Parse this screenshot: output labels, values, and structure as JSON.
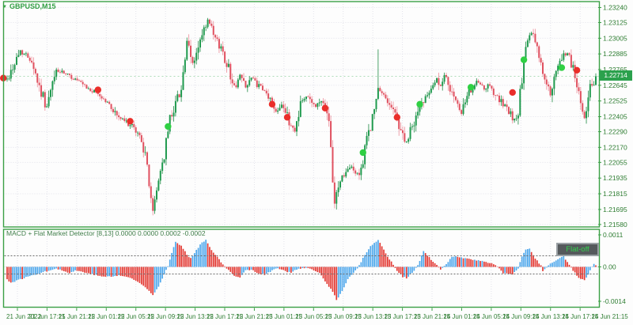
{
  "window_title": "GBPUSD,M15",
  "symbol": {
    "dropdown_icon": "▼",
    "label": "GBPUSD,M15"
  },
  "indicator": {
    "name": "MACD + Flat Market Detector",
    "params": "[8,13]",
    "values": [
      "0.0000",
      "0.0000",
      "0.0002",
      "-0.0002"
    ],
    "label": "MACD + Flat Market Detector [8,13] 0.0000 0.0000 0.0002 -0.0002",
    "flat_button_label": "Flat-off"
  },
  "price_axis": {
    "current_price": "1.22714",
    "ticks": [
      "1.23240",
      "1.23125",
      "1.23005",
      "1.22885",
      "1.22765",
      "1.22645",
      "1.22525",
      "1.22405",
      "1.22290",
      "1.22170",
      "1.22055",
      "1.21935",
      "1.21815",
      "1.21695",
      "1.21580"
    ]
  },
  "indicator_axis": {
    "ticks": [
      "0.0011",
      "0.00",
      "-0.0014"
    ]
  },
  "time_axis": {
    "labels": [
      "21 Jun 2022",
      "21 Jun 17:15",
      "21 Jun 21:15",
      "22 Jun 01:15",
      "22 Jun 05:15",
      "22 Jun 09:15",
      "22 Jun 13:15",
      "22 Jun 17:15",
      "22 Jun 21:15",
      "23 Jun 01:15",
      "23 Jun 05:15",
      "23 Jun 09:15",
      "23 Jun 13:15",
      "23 Jun 17:15",
      "23 Jun 21:15",
      "24 Jun 01:15",
      "24 Jun 05:15",
      "24 Jun 09:15",
      "24 Jun 13:15",
      "24 Jun 17:15",
      "24 Jun 21:15"
    ]
  },
  "colors": {
    "frame": "#3aa045",
    "axis_text": "#2e7d32",
    "grid": "#e2e2ea",
    "bull": "#1f9a4e",
    "bear": "#e0505f",
    "wick_bull": "#1f8a44",
    "wick_bear": "#ec8d99",
    "dot_buy": "#2fd043",
    "dot_sell": "#ea2e2a",
    "macd_up": "#4fa8ec",
    "macd_down": "#e33b35",
    "threshold_line": "#6a6a6a",
    "zero_line": "#b8b8c0",
    "tag_bg": "#2ba14d",
    "tag_text": "#ffffff"
  },
  "chart_data": [
    {
      "type": "candlestick",
      "title": "GBPUSD,M15",
      "bars": 312,
      "price_range": [
        1.2158,
        1.2324
      ],
      "current_price": 1.22714,
      "close_anchors": [
        [
          0,
          1.2269
        ],
        [
          7,
          1.2291
        ],
        [
          13,
          1.2284
        ],
        [
          17,
          1.2263
        ],
        [
          21,
          1.2248
        ],
        [
          26,
          1.2276
        ],
        [
          32,
          1.2272
        ],
        [
          36,
          1.2269
        ],
        [
          42,
          1.2262
        ],
        [
          48,
          1.2258
        ],
        [
          53,
          1.2251
        ],
        [
          59,
          1.224
        ],
        [
          65,
          1.2234
        ],
        [
          71,
          1.2224
        ],
        [
          74,
          1.2202
        ],
        [
          77,
          1.2167
        ],
        [
          80,
          1.2193
        ],
        [
          83,
          1.2211
        ],
        [
          86,
          1.2239
        ],
        [
          89,
          1.2251
        ],
        [
          92,
          1.2263
        ],
        [
          95,
          1.2296
        ],
        [
          98,
          1.2281
        ],
        [
          101,
          1.2293
        ],
        [
          106,
          1.2314
        ],
        [
          109,
          1.2302
        ],
        [
          113,
          1.2293
        ],
        [
          117,
          1.2278
        ],
        [
          120,
          1.2263
        ],
        [
          123,
          1.2272
        ],
        [
          126,
          1.2264
        ],
        [
          129,
          1.227
        ],
        [
          134,
          1.2262
        ],
        [
          138,
          1.2256
        ],
        [
          142,
          1.2245
        ],
        [
          145,
          1.2251
        ],
        [
          149,
          1.2236
        ],
        [
          152,
          1.223
        ],
        [
          155,
          1.2251
        ],
        [
          159,
          1.2257
        ],
        [
          163,
          1.2248
        ],
        [
          167,
          1.2254
        ],
        [
          170,
          1.2233
        ],
        [
          173,
          1.2174
        ],
        [
          176,
          1.2193
        ],
        [
          182,
          1.2202
        ],
        [
          185,
          1.2196
        ],
        [
          188,
          1.2205
        ],
        [
          190,
          1.2224
        ],
        [
          193,
          1.2239
        ],
        [
          196,
          1.226
        ],
        [
          199,
          1.2257
        ],
        [
          202,
          1.2251
        ],
        [
          205,
          1.2242
        ],
        [
          208,
          1.223
        ],
        [
          211,
          1.222
        ],
        [
          214,
          1.2233
        ],
        [
          218,
          1.2247
        ],
        [
          221,
          1.2257
        ],
        [
          224,
          1.2264
        ],
        [
          227,
          1.2269
        ],
        [
          229,
          1.2263
        ],
        [
          232,
          1.2272
        ],
        [
          237,
          1.225
        ],
        [
          240,
          1.2243
        ],
        [
          245,
          1.2262
        ],
        [
          249,
          1.2267
        ],
        [
          252,
          1.226
        ],
        [
          255,
          1.2265
        ],
        [
          259,
          1.2255
        ],
        [
          263,
          1.2248
        ],
        [
          268,
          1.2238
        ],
        [
          270,
          1.2245
        ],
        [
          272,
          1.227
        ],
        [
          275,
          1.23
        ],
        [
          277,
          1.2304
        ],
        [
          280,
          1.2295
        ],
        [
          284,
          1.2267
        ],
        [
          287,
          1.2258
        ],
        [
          290,
          1.2272
        ],
        [
          293,
          1.2285
        ],
        [
          296,
          1.229
        ],
        [
          299,
          1.2278
        ],
        [
          302,
          1.2258
        ],
        [
          305,
          1.224
        ],
        [
          308,
          1.2262
        ],
        [
          311,
          1.22714
        ]
      ],
      "wick_spikes": [
        [
          77,
          "low",
          1.2165
        ],
        [
          106,
          "high",
          1.2316
        ],
        [
          173,
          "low",
          1.2172
        ],
        [
          196,
          "high",
          1.2292
        ]
      ],
      "signals": [
        {
          "i": -2,
          "price": 1.227,
          "type": "sell"
        },
        {
          "i": 48,
          "price": 1.2261,
          "type": "sell"
        },
        {
          "i": 65,
          "price": 1.2237,
          "type": "sell"
        },
        {
          "i": 85,
          "price": 1.2233,
          "type": "buy"
        },
        {
          "i": 140,
          "price": 1.225,
          "type": "sell"
        },
        {
          "i": 148,
          "price": 1.224,
          "type": "sell"
        },
        {
          "i": 168,
          "price": 1.2247,
          "type": "sell"
        },
        {
          "i": 188,
          "price": 1.2213,
          "type": "buy"
        },
        {
          "i": 206,
          "price": 1.224,
          "type": "sell"
        },
        {
          "i": 218,
          "price": 1.225,
          "type": "buy"
        },
        {
          "i": 245,
          "price": 1.2263,
          "type": "buy"
        },
        {
          "i": 267,
          "price": 1.2259,
          "type": "sell"
        },
        {
          "i": 273,
          "price": 1.2284,
          "type": "buy"
        },
        {
          "i": 293,
          "price": 1.2278,
          "type": "buy"
        },
        {
          "i": 301,
          "price": 1.2276,
          "type": "sell"
        }
      ]
    },
    {
      "type": "bar",
      "title": "MACD + Flat Market Detector [8,13]",
      "flat_levels": [
        0.0002,
        -0.0002
      ],
      "ylim": [
        -0.0014,
        0.0011
      ],
      "color_rule": "blue when histogram rising, red when falling",
      "value_anchors_e4": [
        [
          0,
          -5
        ],
        [
          2,
          -6.5
        ],
        [
          9,
          -4.5
        ],
        [
          15,
          -3
        ],
        [
          22,
          -1.5
        ],
        [
          26,
          -0.5
        ],
        [
          29,
          -1.5
        ],
        [
          33,
          -2.5
        ],
        [
          36,
          -1.5
        ],
        [
          40,
          -2
        ],
        [
          45,
          -3
        ],
        [
          49,
          -3.8
        ],
        [
          55,
          -4
        ],
        [
          59,
          -3.5
        ],
        [
          62,
          -3.8
        ],
        [
          65,
          -4.5
        ],
        [
          70,
          -6.5
        ],
        [
          74,
          -9
        ],
        [
          77,
          -11.3
        ],
        [
          80,
          -8
        ],
        [
          83,
          -3
        ],
        [
          85,
          0.5
        ],
        [
          88,
          8
        ],
        [
          89,
          10.2
        ],
        [
          92,
          8.5
        ],
        [
          95,
          5
        ],
        [
          97,
          3.5
        ],
        [
          100,
          7
        ],
        [
          103,
          10
        ],
        [
          105,
          11
        ],
        [
          108,
          7
        ],
        [
          111,
          4
        ],
        [
          115,
          0
        ],
        [
          120,
          -3.5
        ],
        [
          123,
          -4.2
        ],
        [
          126,
          -1.5
        ],
        [
          129,
          -1
        ],
        [
          132,
          -2.5
        ],
        [
          136,
          -3.2
        ],
        [
          140,
          -1.5
        ],
        [
          143,
          -0.5
        ],
        [
          147,
          -1.8
        ],
        [
          150,
          -2.2
        ],
        [
          154,
          -0.8
        ],
        [
          157,
          -0.5
        ],
        [
          161,
          -1
        ],
        [
          165,
          -2.5
        ],
        [
          168,
          -6
        ],
        [
          172,
          -10
        ],
        [
          174,
          -13.4
        ],
        [
          177,
          -10
        ],
        [
          180,
          -5
        ],
        [
          184,
          -1.5
        ],
        [
          186,
          0.5
        ],
        [
          189,
          5
        ],
        [
          192,
          8.5
        ],
        [
          196,
          11
        ],
        [
          199,
          7
        ],
        [
          202,
          3
        ],
        [
          204,
          1
        ],
        [
          206,
          -1.5
        ],
        [
          209,
          -4
        ],
        [
          211,
          -4.5
        ],
        [
          214,
          -2.5
        ],
        [
          217,
          0.5
        ],
        [
          220,
          6.5
        ],
        [
          222,
          4.5
        ],
        [
          226,
          1.5
        ],
        [
          229,
          -1.2
        ],
        [
          232,
          1
        ],
        [
          235,
          4
        ],
        [
          237,
          4.5
        ],
        [
          242,
          3.5
        ],
        [
          247,
          2.8
        ],
        [
          252,
          2.2
        ],
        [
          256,
          1.5
        ],
        [
          259,
          0.3
        ],
        [
          262,
          -2.5
        ],
        [
          267,
          -3.2
        ],
        [
          270,
          -0.5
        ],
        [
          272,
          4
        ],
        [
          274,
          7
        ],
        [
          276,
          7.5
        ],
        [
          279,
          3.5
        ],
        [
          282,
          0.5
        ],
        [
          283,
          -1.8
        ],
        [
          286,
          0.8
        ],
        [
          288,
          1.5
        ],
        [
          292,
          3.8
        ],
        [
          294,
          4.2
        ],
        [
          297,
          1
        ],
        [
          299,
          -1.5
        ],
        [
          302,
          -4.5
        ],
        [
          305,
          -5.5
        ],
        [
          307,
          -3
        ],
        [
          310,
          1.2
        ],
        [
          311,
          0.8
        ]
      ]
    }
  ]
}
